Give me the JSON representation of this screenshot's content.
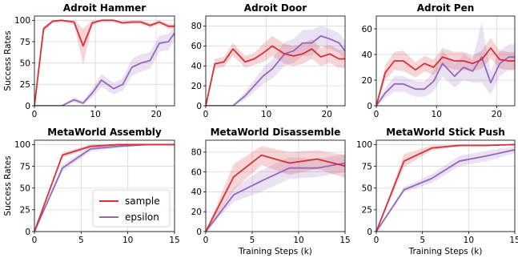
{
  "colors": {
    "sample": "#d62f38",
    "epsilon": "#9467bd"
  },
  "legend": {
    "placement": "lower-right of MetaWorld Assembly panel",
    "entries": [
      {
        "label": "sample",
        "color": "#d62f38"
      },
      {
        "label": "epsilon",
        "color": "#9467bd"
      }
    ]
  },
  "chart_data": [
    {
      "type": "line",
      "title": "Adroit Hammer",
      "xlabel": "",
      "ylabel": "Success Rates",
      "xlim": [
        0,
        23
      ],
      "ylim": [
        0,
        105
      ],
      "xticks": [
        0,
        10,
        20
      ],
      "yticks": [
        0,
        25,
        50,
        75,
        100
      ],
      "grid": true,
      "series": [
        {
          "name": "sample",
          "x": [
            0,
            1.5,
            3,
            4.5,
            6.5,
            8,
            9.5,
            11,
            13,
            14.5,
            16,
            17.5,
            19,
            20.5,
            22,
            23
          ],
          "y": [
            0,
            90,
            99,
            100,
            98,
            70,
            97,
            100,
            100,
            97,
            98,
            98,
            94,
            98,
            93,
            93
          ],
          "lower": [
            0,
            87,
            97,
            98,
            95,
            48,
            94,
            98,
            98,
            95,
            96,
            96,
            91,
            96,
            90,
            90
          ],
          "upper": [
            0,
            93,
            100,
            100,
            100,
            90,
            100,
            100,
            100,
            99,
            100,
            100,
            97,
            100,
            96,
            96
          ]
        },
        {
          "name": "epsilon",
          "x": [
            0,
            1.5,
            3,
            4.5,
            6.5,
            8,
            9.5,
            11,
            13,
            14.5,
            16,
            17.5,
            19,
            20.5,
            22,
            23
          ],
          "y": [
            0,
            0,
            0,
            0,
            7,
            3,
            15,
            30,
            20,
            25,
            45,
            50,
            53,
            73,
            75,
            85
          ],
          "lower": [
            0,
            0,
            0,
            0,
            4,
            1,
            10,
            22,
            13,
            18,
            35,
            40,
            43,
            63,
            65,
            77
          ],
          "upper": [
            0,
            0,
            0,
            0,
            10,
            6,
            20,
            37,
            27,
            32,
            55,
            60,
            63,
            82,
            84,
            92
          ]
        }
      ]
    },
    {
      "type": "line",
      "title": "Adroit Door",
      "xlabel": "",
      "ylabel": "",
      "xlim": [
        0,
        23
      ],
      "ylim": [
        0,
        90
      ],
      "xticks": [
        0,
        10,
        20
      ],
      "yticks": [
        0,
        20,
        40,
        60,
        80
      ],
      "grid": true,
      "series": [
        {
          "name": "sample",
          "x": [
            0,
            1.5,
            3,
            4.5,
            6.5,
            8,
            9.5,
            11,
            13,
            14.5,
            16,
            17.5,
            19,
            20.5,
            22,
            23
          ],
          "y": [
            0,
            42,
            44,
            57,
            44,
            47,
            53,
            60,
            52,
            50,
            52,
            57,
            49,
            52,
            47,
            47
          ],
          "lower": [
            0,
            37,
            39,
            50,
            38,
            41,
            44,
            50,
            42,
            40,
            42,
            47,
            40,
            43,
            38,
            38
          ],
          "upper": [
            0,
            47,
            49,
            63,
            50,
            53,
            62,
            70,
            62,
            60,
            62,
            67,
            58,
            61,
            56,
            56
          ]
        },
        {
          "name": "epsilon",
          "x": [
            0,
            1.5,
            3,
            4.5,
            6.5,
            8,
            9.5,
            11,
            13,
            14.5,
            16,
            17.5,
            19,
            20.5,
            22,
            23
          ],
          "y": [
            0,
            0,
            0,
            0,
            10,
            20,
            30,
            37,
            52,
            55,
            63,
            63,
            70,
            67,
            63,
            55
          ],
          "lower": [
            0,
            0,
            0,
            0,
            6,
            14,
            22,
            27,
            40,
            43,
            50,
            50,
            60,
            57,
            53,
            45
          ],
          "upper": [
            0,
            0,
            0,
            0,
            14,
            26,
            38,
            47,
            64,
            67,
            76,
            76,
            80,
            77,
            73,
            65
          ]
        }
      ]
    },
    {
      "type": "line",
      "title": "Adroit Pen",
      "xlabel": "",
      "ylabel": "",
      "xlim": [
        0,
        23
      ],
      "ylim": [
        0,
        70
      ],
      "xticks": [
        0,
        10,
        20
      ],
      "yticks": [
        0,
        20,
        40,
        60
      ],
      "grid": true,
      "series": [
        {
          "name": "sample",
          "x": [
            0,
            1.5,
            3,
            4.5,
            6.5,
            8,
            9.5,
            11,
            13,
            14.5,
            16,
            17.5,
            19,
            20.5,
            22,
            23
          ],
          "y": [
            0,
            26,
            35,
            35,
            28,
            33,
            30,
            38,
            35,
            35,
            33,
            36,
            45,
            36,
            35,
            35
          ],
          "lower": [
            0,
            20,
            28,
            27,
            22,
            27,
            24,
            31,
            28,
            28,
            27,
            29,
            37,
            29,
            28,
            28
          ],
          "upper": [
            0,
            32,
            42,
            43,
            34,
            39,
            36,
            45,
            42,
            42,
            39,
            43,
            53,
            43,
            42,
            42
          ]
        },
        {
          "name": "epsilon",
          "x": [
            0,
            1.5,
            3,
            4.5,
            6.5,
            8,
            9.5,
            11,
            13,
            14.5,
            16,
            17.5,
            19,
            20.5,
            22,
            23
          ],
          "y": [
            0,
            10,
            17,
            17,
            13,
            13,
            19,
            33,
            23,
            30,
            27,
            38,
            18,
            33,
            38,
            38
          ],
          "lower": [
            0,
            6,
            11,
            11,
            7,
            7,
            11,
            23,
            14,
            20,
            18,
            18,
            9,
            23,
            28,
            28
          ],
          "upper": [
            0,
            14,
            23,
            23,
            19,
            19,
            27,
            43,
            32,
            40,
            36,
            65,
            27,
            43,
            48,
            48
          ]
        }
      ]
    },
    {
      "type": "line",
      "title": "MetaWorld Assembly",
      "xlabel": "",
      "ylabel": "Success Rates",
      "xlim": [
        0,
        15
      ],
      "ylim": [
        0,
        105
      ],
      "xticks": [
        0,
        5,
        10,
        15
      ],
      "yticks": [
        0,
        25,
        50,
        75,
        100
      ],
      "grid": true,
      "series": [
        {
          "name": "sample",
          "x": [
            0,
            3,
            6,
            9,
            12,
            15
          ],
          "y": [
            0,
            88,
            98,
            100,
            100,
            100
          ],
          "lower": [
            0,
            85,
            96,
            99,
            100,
            100
          ],
          "upper": [
            0,
            91,
            100,
            100,
            100,
            100
          ]
        },
        {
          "name": "epsilon",
          "x": [
            0,
            3,
            6,
            9,
            12,
            15
          ],
          "y": [
            0,
            73,
            95,
            98,
            100,
            100
          ],
          "lower": [
            0,
            69,
            92,
            96,
            99,
            100
          ],
          "upper": [
            0,
            77,
            98,
            100,
            100,
            100
          ]
        }
      ]
    },
    {
      "type": "line",
      "title": "MetaWorld Disassemble",
      "xlabel": "Training Steps (k)",
      "ylabel": "",
      "xlim": [
        0,
        15
      ],
      "ylim": [
        0,
        92
      ],
      "xticks": [
        0,
        5,
        10,
        15
      ],
      "yticks": [
        0,
        20,
        40,
        60,
        80
      ],
      "grid": true,
      "series": [
        {
          "name": "sample",
          "x": [
            0,
            3,
            6,
            9,
            12,
            15
          ],
          "y": [
            0,
            55,
            77,
            69,
            73,
            66
          ],
          "lower": [
            0,
            42,
            67,
            57,
            63,
            54
          ],
          "upper": [
            0,
            68,
            86,
            80,
            82,
            77
          ]
        },
        {
          "name": "epsilon",
          "x": [
            0,
            3,
            6,
            9,
            12,
            15
          ],
          "y": [
            0,
            37,
            51,
            64,
            64,
            69
          ],
          "lower": [
            0,
            30,
            40,
            53,
            55,
            60
          ],
          "upper": [
            0,
            44,
            62,
            75,
            73,
            78
          ]
        }
      ]
    },
    {
      "type": "line",
      "title": "MetaWorld Stick Push",
      "xlabel": "Training Steps (k)",
      "ylabel": "",
      "xlim": [
        0,
        15
      ],
      "ylim": [
        0,
        105
      ],
      "xticks": [
        0,
        5,
        10,
        15
      ],
      "yticks": [
        0,
        25,
        50,
        75,
        100
      ],
      "grid": true,
      "series": [
        {
          "name": "sample",
          "x": [
            0,
            3,
            6,
            9,
            12,
            15
          ],
          "y": [
            0,
            81,
            96,
            99,
            99,
            100
          ],
          "lower": [
            0,
            74,
            93,
            98,
            98,
            100
          ],
          "upper": [
            0,
            89,
            99,
            100,
            100,
            100
          ]
        },
        {
          "name": "epsilon",
          "x": [
            0,
            3,
            6,
            9,
            12,
            15
          ],
          "y": [
            0,
            48,
            61,
            81,
            87,
            94
          ],
          "lower": [
            0,
            45,
            56,
            75,
            81,
            90
          ],
          "upper": [
            0,
            51,
            66,
            87,
            93,
            98
          ]
        }
      ]
    }
  ]
}
